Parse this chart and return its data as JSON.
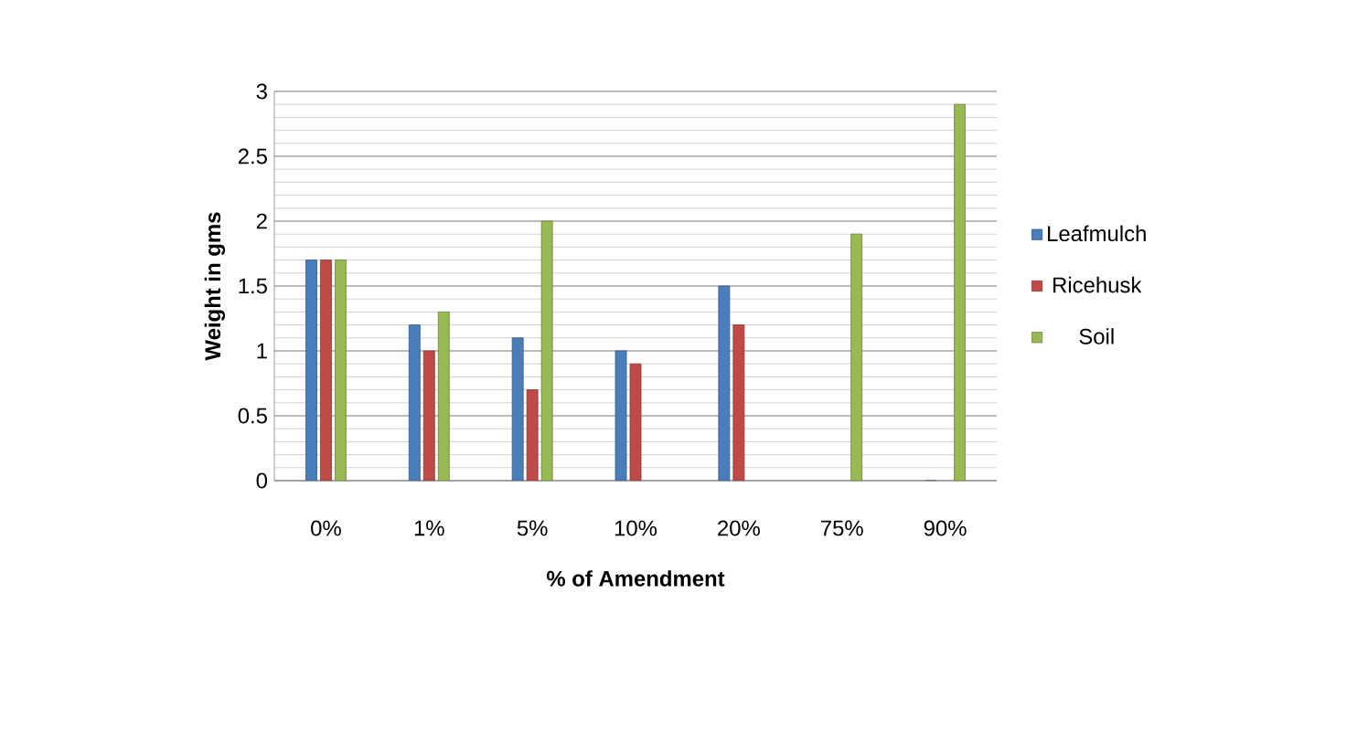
{
  "chart_data": {
    "type": "bar",
    "xlabel": "% of Amendment",
    "ylabel": "Weight in gms",
    "categories": [
      "0%",
      "1%",
      "5%",
      "10%",
      "20%",
      "75%",
      "90%"
    ],
    "series": [
      {
        "name": "Leafmulch",
        "color": "#4a7ebb",
        "values": [
          1.7,
          1.2,
          1.1,
          1.0,
          1.5,
          null,
          0
        ]
      },
      {
        "name": "Ricehusk",
        "color": "#be4b48",
        "values": [
          1.7,
          1.0,
          0.7,
          0.9,
          1.2,
          null,
          null
        ]
      },
      {
        "name": "Soil",
        "color": "#98b954",
        "values": [
          1.7,
          1.3,
          2.0,
          null,
          null,
          1.9,
          2.9
        ]
      }
    ],
    "ylim": [
      0,
      3
    ],
    "yticks": [
      0,
      0.5,
      1,
      1.5,
      2,
      2.5,
      3
    ],
    "grid": "y",
    "legend": "right"
  }
}
